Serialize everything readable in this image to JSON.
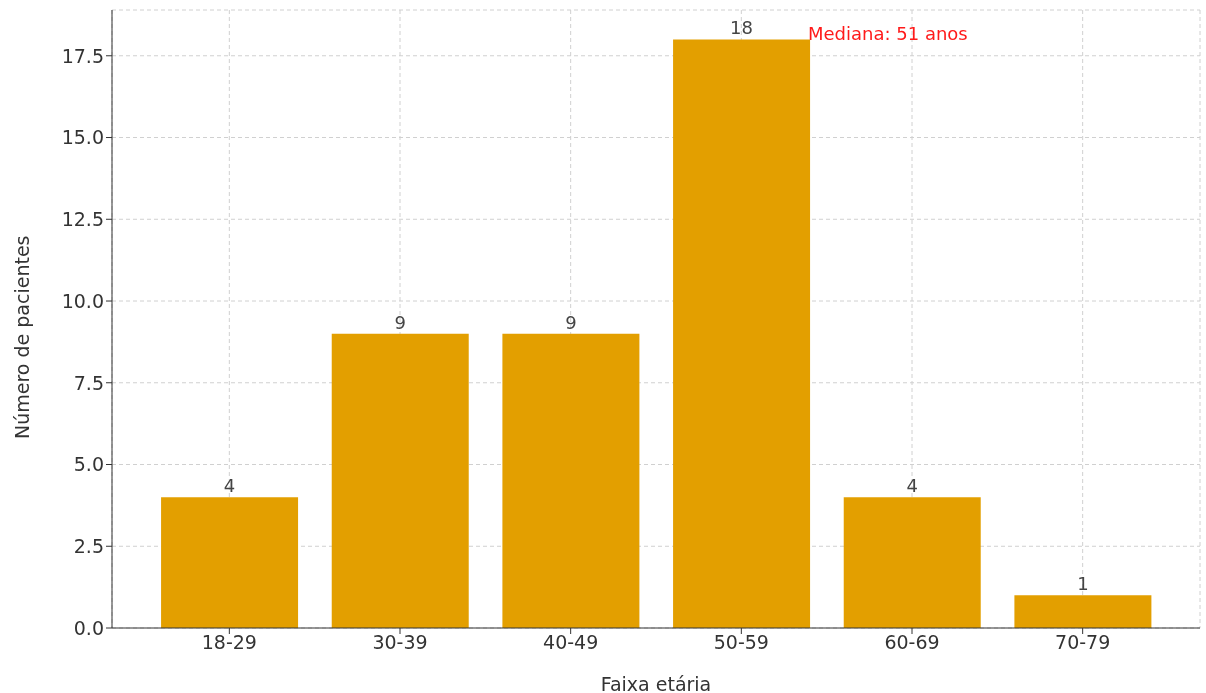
{
  "chart_data": {
    "type": "bar",
    "xlabel": "Faixa etária",
    "ylabel": "Número de pacientes",
    "categories": [
      "18-29",
      "30-39",
      "40-49",
      "50-59",
      "60-69",
      "70-79"
    ],
    "values": [
      4,
      9,
      9,
      18,
      4,
      1
    ],
    "color": "#e39f00",
    "ylim": [
      0,
      18.9
    ],
    "yticks": [
      {
        "value": 0,
        "label": "0.0"
      },
      2.5,
      {
        "value": 5,
        "label": "5.0"
      },
      7.5,
      {
        "value": 10,
        "label": "10.0"
      },
      12.5,
      {
        "value": 15,
        "label": "15.0"
      },
      17.5
    ],
    "grid": true,
    "data_labels": true,
    "annotations": [
      "Mediana: 51 anos"
    ]
  }
}
